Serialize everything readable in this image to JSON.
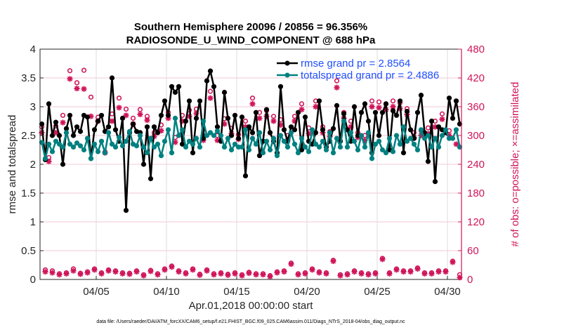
{
  "chart_data": {
    "type": "line",
    "title": "Southern Hemisphere 20096 / 20856 = 96.356%",
    "subtitle": "RADIOSONDE_U_WIND_COMPONENT @ 688 hPa",
    "xlabel": "Apr.01,2018 00:00:00 start",
    "ylabel": "rmse and totalspread",
    "y2label": "# of obs: o=possible; ×=assimilated",
    "footnote": "data file: /Users/raeder/DAI/ATM_forcXX/CAM6_setup/f.e21.FHIST_BGC.f09_025.CAM6assim.011/Diags_NTrS_2018-04/obs_diag_output.nc",
    "xlim_days": [
      0,
      30
    ],
    "ylim": [
      0,
      4
    ],
    "y2lim": [
      0,
      480
    ],
    "x_ticks": [
      {
        "day": 4,
        "label": "04/05"
      },
      {
        "day": 9,
        "label": "04/10"
      },
      {
        "day": 14,
        "label": "04/15"
      },
      {
        "day": 19,
        "label": "04/20"
      },
      {
        "day": 24,
        "label": "04/25"
      },
      {
        "day": 29,
        "label": "04/30"
      }
    ],
    "y_ticks": [
      "0",
      "0.5",
      "1",
      "1.5",
      "2",
      "2.5",
      "3",
      "3.5",
      "4"
    ],
    "y2_ticks": [
      "0",
      "60",
      "120",
      "180",
      "240",
      "300",
      "360",
      "420",
      "480"
    ],
    "grid": true,
    "legend_position": "top-right",
    "legend": [
      "rmse grand pr = 2.8564",
      "totalspread grand pr = 2.4886"
    ],
    "time_step_hours": 6,
    "series": [
      {
        "name": "rmse",
        "color": "#000000",
        "values": [
          2.7,
          2.08,
          3.05,
          2.5,
          2.73,
          2.5,
          2.0,
          2.62,
          2.85,
          2.5,
          2.65,
          2.57,
          2.85,
          2.82,
          2.1,
          2.6,
          2.75,
          2.85,
          2.57,
          2.65,
          3.5,
          2.6,
          2.4,
          2.8,
          1.2,
          2.55,
          2.7,
          2.57,
          2.55,
          2.0,
          2.65,
          1.75,
          2.65,
          2.55,
          2.85,
          3.1,
          2.85,
          3.35,
          3.25,
          3.35,
          2.35,
          2.75,
          3.1,
          2.2,
          2.8,
          3.1,
          2.45,
          3.45,
          3.62,
          3.35,
          2.65,
          2.4,
          3.25,
          2.8,
          2.5,
          2.85,
          2.45,
          2.82,
          1.8,
          2.65,
          2.55,
          2.9,
          2.15,
          2.4,
          2.95,
          2.55,
          2.4,
          2.2,
          3.35,
          2.6,
          2.4,
          2.65,
          2.6,
          2.9,
          2.25,
          2.82,
          2.4,
          2.35,
          2.55,
          3.1,
          2.6,
          2.3,
          2.4,
          2.62,
          3.02,
          2.4,
          2.88,
          2.6,
          2.4,
          3.0,
          2.5,
          2.9,
          3.05,
          2.75,
          2.2,
          2.9,
          2.5,
          2.9,
          3.05,
          2.25,
          2.93,
          2.85,
          3.1,
          2.2,
          2.92,
          2.6,
          2.45,
          2.9,
          3.2,
          2.55,
          2.05,
          2.75,
          1.7,
          2.65,
          2.6,
          2.55,
          3.15,
          2.8,
          3.1,
          2.7
        ]
      },
      {
        "name": "totalspread",
        "color": "#008080",
        "values": [
          2.38,
          2.1,
          2.35,
          2.22,
          2.4,
          2.35,
          2.3,
          2.55,
          2.35,
          2.3,
          2.37,
          2.32,
          2.25,
          2.45,
          2.1,
          2.35,
          2.22,
          2.4,
          2.2,
          2.55,
          2.35,
          2.3,
          2.47,
          2.32,
          2.4,
          2.57,
          2.35,
          2.32,
          2.5,
          2.3,
          2.2,
          2.45,
          2.3,
          2.35,
          2.15,
          2.4,
          2.6,
          2.2,
          2.8,
          2.5,
          2.6,
          2.3,
          2.4,
          2.35,
          2.45,
          2.3,
          2.75,
          2.5,
          2.55,
          2.5,
          2.58,
          2.5,
          2.3,
          2.45,
          2.25,
          2.35,
          2.3,
          2.3,
          2.6,
          2.25,
          2.45,
          2.35,
          2.55,
          2.2,
          2.4,
          2.25,
          2.45,
          2.15,
          2.5,
          2.4,
          2.3,
          2.55,
          2.35,
          2.2,
          2.45,
          2.3,
          2.22,
          2.6,
          2.35,
          2.3,
          2.4,
          2.25,
          2.55,
          2.2,
          2.45,
          2.3,
          2.75,
          2.3,
          2.55,
          2.4,
          2.25,
          2.5,
          2.3,
          2.55,
          2.1,
          2.35,
          2.4,
          2.25,
          2.2,
          2.45,
          2.22,
          2.5,
          2.35,
          2.65,
          2.4,
          2.45,
          2.35,
          2.25,
          2.6,
          2.45,
          2.5,
          2.3,
          2.45,
          2.3,
          2.5,
          2.6,
          2.45,
          2.45,
          2.6,
          2.3
        ]
      },
      {
        "name": "possible",
        "color": "#d0155a",
        "marker": "o",
        "values": [
          318,
          20,
          254,
          18,
          320,
          12,
          342,
          14,
          435,
          22,
          410,
          13,
          436,
          16,
          380,
          22,
          338,
          14,
          266,
          20,
          345,
          18,
          378,
          14,
          355,
          13,
          336,
          18,
          354,
          10,
          340,
          19,
          306,
          12,
          322,
          22,
          348,
          28,
          296,
          18,
          342,
          14,
          353,
          22,
          355,
          11,
          300,
          20,
          392,
          12,
          300,
          14,
          335,
          11,
          315,
          14,
          302,
          10,
          330,
          15,
          378,
          12,
          348,
          12,
          352,
          8,
          340,
          16,
          333,
          18,
          300,
          34,
          340,
          12,
          366,
          14,
          316,
          22,
          372,
          16,
          318,
          14,
          308,
          40,
          414,
          10,
          348,
          12,
          330,
          18,
          306,
          14,
          300,
          12,
          372,
          14,
          370,
          44,
          366,
          14,
          372,
          22,
          368,
          18,
          356,
          18,
          306,
          24,
          310,
          14,
          316,
          14,
          330,
          18,
          345,
          18,
          310,
          38,
          372,
          10
        ]
      },
      {
        "name": "assimilated",
        "color": "#d0155a",
        "marker": "*",
        "values": [
          306,
          16,
          246,
          14,
          306,
          10,
          327,
          12,
          418,
          18,
          398,
          11,
          397,
          14,
          340,
          20,
          330,
          12,
          264,
          18,
          330,
          16,
          358,
          12,
          342,
          11,
          324,
          16,
          344,
          8,
          332,
          17,
          298,
          10,
          310,
          20,
          336,
          26,
          286,
          16,
          330,
          12,
          340,
          20,
          346,
          9,
          290,
          18,
          378,
          10,
          290,
          12,
          324,
          9,
          304,
          12,
          292,
          8,
          318,
          13,
          366,
          10,
          336,
          10,
          340,
          6,
          330,
          14,
          322,
          16,
          290,
          32,
          330,
          10,
          354,
          12,
          304,
          20,
          360,
          14,
          306,
          12,
          298,
          38,
          400,
          8,
          336,
          10,
          318,
          16,
          296,
          12,
          290,
          10,
          360,
          12,
          358,
          42,
          354,
          12,
          360,
          20,
          356,
          16,
          344,
          16,
          296,
          22,
          300,
          12,
          304,
          12,
          318,
          16,
          334,
          16,
          300,
          36,
          282,
          4
        ]
      }
    ]
  }
}
